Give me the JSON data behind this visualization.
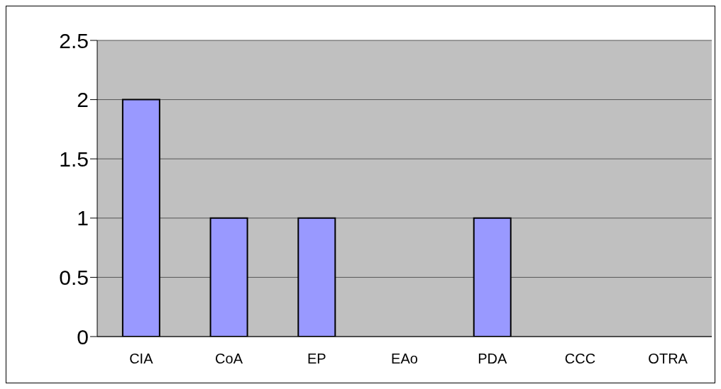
{
  "chart_data": {
    "type": "bar",
    "categories": [
      "CIA",
      "CoA",
      "EP",
      "EAo",
      "PDA",
      "CCC",
      "OTRA"
    ],
    "values": [
      2,
      1,
      1,
      0,
      1,
      0,
      0
    ],
    "color": "#9999ff",
    "ylim": [
      0,
      2.5
    ],
    "yticks": [
      0,
      0.5,
      1,
      1.5,
      2,
      2.5
    ],
    "grid": "y"
  }
}
